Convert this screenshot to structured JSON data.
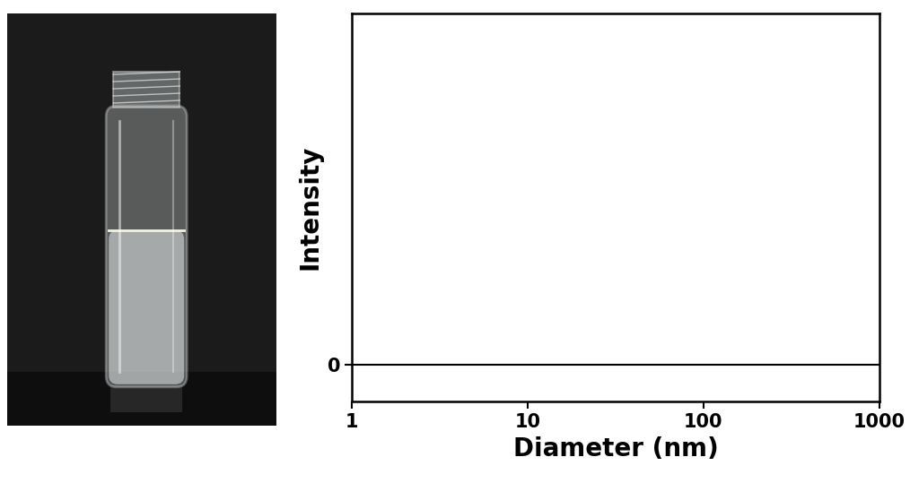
{
  "chart_data": {
    "type": "line",
    "x_label": "Diameter (nm)",
    "y_label": "Intensity",
    "log": "x",
    "series": [
      {
        "name": null,
        "color": "#000000",
        "x": [
          1,
          1000
        ],
        "values": [
          0,
          0
        ]
      }
    ],
    "xlim": [
      1,
      1000
    ],
    "xticks": [
      1,
      10,
      100,
      1000
    ],
    "ylim": [
      -0.1,
      0.96
    ],
    "yticks": [
      0
    ]
  }
}
